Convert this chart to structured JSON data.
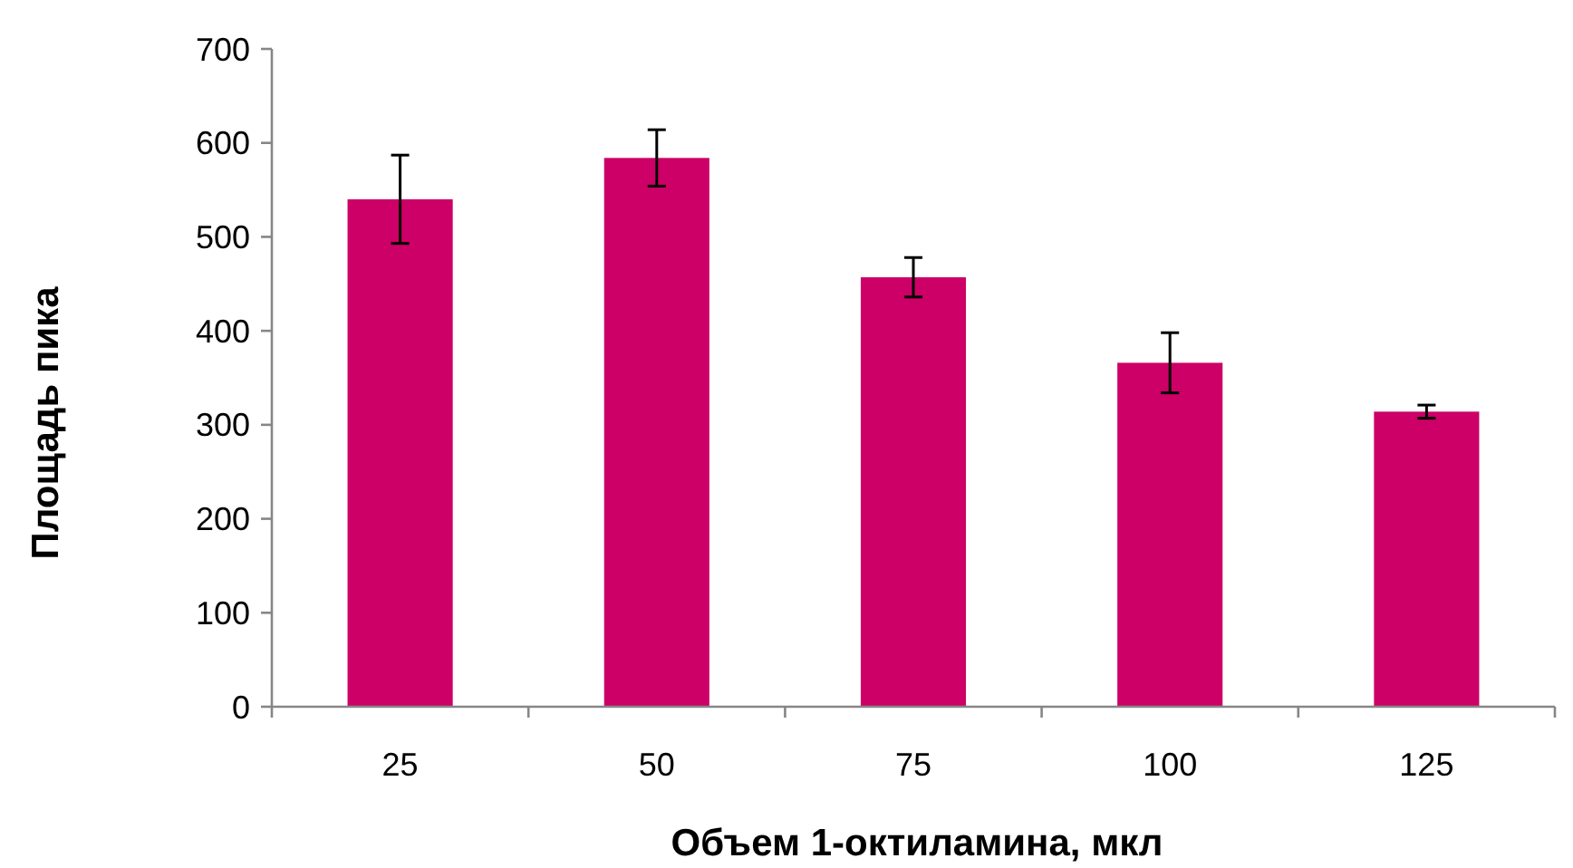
{
  "chart_data": {
    "type": "bar",
    "xlabel": "Объем 1-октиламина, мкл",
    "ylabel": "Площадь пика",
    "categories": [
      "25",
      "50",
      "75",
      "100",
      "125"
    ],
    "values": [
      540,
      584,
      457,
      366,
      314
    ],
    "errors": [
      47,
      30,
      21,
      32,
      7
    ],
    "color": "#cc0066",
    "ylim": [
      0,
      700
    ],
    "yticks": [
      0,
      100,
      200,
      300,
      400,
      500,
      600,
      700
    ],
    "grid": false
  }
}
